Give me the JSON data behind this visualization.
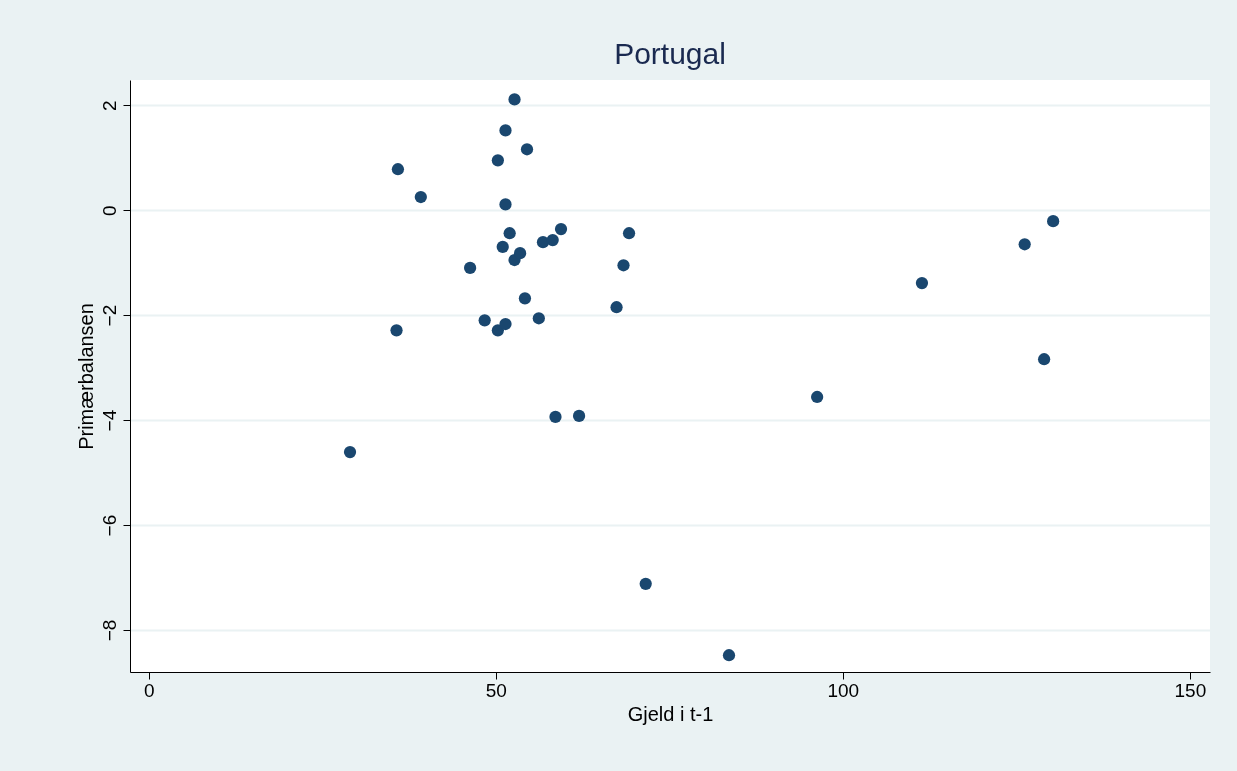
{
  "chart_data": {
    "type": "scatter",
    "title": "Portugal",
    "xlabel": "Gjeld i t-1",
    "ylabel": "Primærbalansen",
    "x": [
      29.0,
      35.9,
      35.7,
      39.2,
      46.3,
      48.4,
      50.3,
      50.3,
      51.0,
      51.4,
      51.4,
      51.4,
      52.0,
      52.7,
      52.7,
      53.5,
      54.5,
      54.2,
      56.2,
      56.8,
      58.2,
      58.6,
      59.4,
      62.0,
      67.4,
      68.4,
      69.2,
      71.6,
      83.6,
      96.3,
      111.4,
      126.2,
      129.0,
      130.3
    ],
    "series": [
      {
        "color": "#1a476f",
        "values": [
          -4.61,
          0.78,
          -2.29,
          0.25,
          -1.1,
          -2.1,
          0.95,
          -2.29,
          -0.7,
          1.52,
          0.11,
          -2.17,
          -0.44,
          2.11,
          -0.95,
          -0.82,
          1.16,
          -1.68,
          -2.06,
          -0.61,
          -0.57,
          -3.94,
          -0.36,
          -3.92,
          -1.85,
          -1.05,
          -0.44,
          -7.12,
          -8.48,
          -3.56,
          -1.39,
          -0.65,
          -2.84,
          -0.21
        ]
      }
    ],
    "xlim": [
      -2.7,
      152.9
    ],
    "ylim": [
      -8.8,
      2.48
    ],
    "xticks": [
      0,
      50,
      100,
      150
    ],
    "yticks": [
      -8,
      -6,
      -4,
      -2,
      0,
      2
    ],
    "grid": "y",
    "marker": "circle"
  }
}
